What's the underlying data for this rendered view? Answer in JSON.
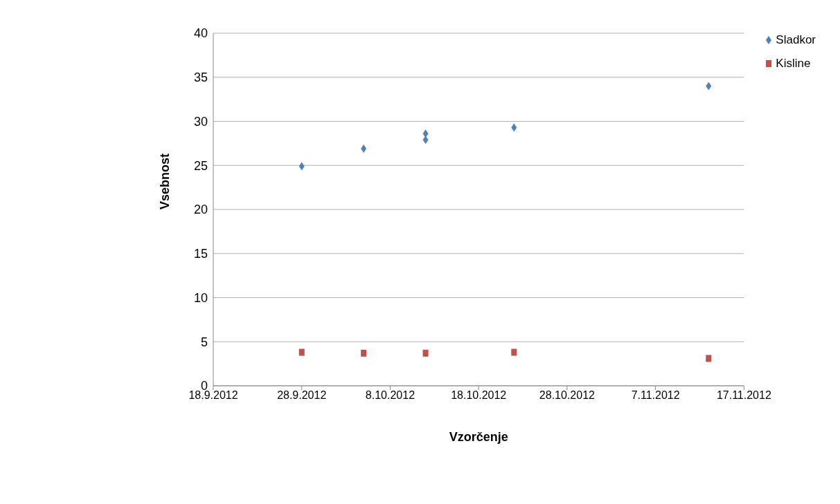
{
  "chart_data": {
    "type": "scatter",
    "xlabel": "Vzorčenje",
    "ylabel": "Vsebnost",
    "series": [
      {
        "name": "Sladkor",
        "color": "#4f81bd",
        "marker": "diamond",
        "x": [
          "2012-09-28",
          "2012-10-05",
          "2012-10-12",
          "2012-10-12",
          "2012-10-22",
          "2012-11-13"
        ],
        "values": [
          24.9,
          26.9,
          28.6,
          27.9,
          29.3,
          34.0
        ]
      },
      {
        "name": "Kisline",
        "color": "#c0504d",
        "marker": "square",
        "x": [
          "2012-09-28",
          "2012-10-05",
          "2012-10-12",
          "2012-10-22",
          "2012-11-13"
        ],
        "values": [
          3.8,
          3.7,
          3.7,
          3.8,
          3.1
        ]
      }
    ],
    "xlim": [
      "2012-09-18",
      "2012-11-17"
    ],
    "xticks": [
      {
        "value": "2012-09-18",
        "label": "18.9.2012"
      },
      {
        "value": "2012-09-28",
        "label": "28.9.2012"
      },
      {
        "value": "2012-10-08",
        "label": "8.10.2012"
      },
      {
        "value": "2012-10-18",
        "label": "18.10.2012"
      },
      {
        "value": "2012-10-28",
        "label": "28.10.2012"
      },
      {
        "value": "2012-11-07",
        "label": "7.11.2012"
      },
      {
        "value": "2012-11-17",
        "label": "17.11.2012"
      }
    ],
    "ylim": [
      0,
      40
    ],
    "yticks": [
      0,
      5,
      10,
      15,
      20,
      25,
      30,
      35,
      40
    ],
    "grid": "y",
    "legend": "top right"
  }
}
